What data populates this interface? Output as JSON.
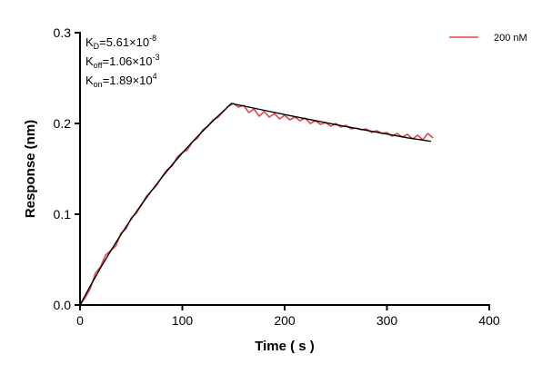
{
  "chart_data": {
    "type": "line",
    "title": "",
    "xlabel": "Time ( s )",
    "ylabel": "Response (nm)",
    "xlim": [
      0,
      400
    ],
    "ylim": [
      0,
      0.3
    ],
    "xticks": [
      "0",
      "100",
      "200",
      "300",
      "400"
    ],
    "yticks": [
      "0.0",
      "0.1",
      "0.2",
      "0.3"
    ],
    "grid": false,
    "legend_position": "top-right",
    "annotations": {
      "kd": {
        "label": "K",
        "sub": "D",
        "value": "=5.61×10",
        "exp": "-8"
      },
      "koff": {
        "label": "K",
        "sub": "off",
        "value": "=1.06×10",
        "exp": "-3"
      },
      "kon": {
        "label": "K",
        "sub": "on",
        "value": "=1.89×10",
        "exp": "4"
      }
    },
    "series": [
      {
        "name": "200 nM",
        "color": "#e0454a",
        "x": [
          0,
          5,
          10,
          15,
          20,
          25,
          30,
          35,
          40,
          45,
          50,
          55,
          60,
          65,
          70,
          75,
          80,
          85,
          90,
          95,
          100,
          105,
          110,
          115,
          120,
          125,
          130,
          135,
          140,
          145,
          150,
          155,
          160,
          165,
          170,
          175,
          180,
          185,
          190,
          195,
          200,
          205,
          210,
          215,
          220,
          225,
          230,
          235,
          240,
          245,
          250,
          255,
          260,
          265,
          270,
          275,
          280,
          285,
          290,
          295,
          300,
          305,
          310,
          315,
          320,
          325,
          330,
          335,
          340,
          345
        ],
        "y": [
          0.0,
          0.008,
          0.018,
          0.035,
          0.042,
          0.055,
          0.06,
          0.065,
          0.079,
          0.084,
          0.096,
          0.101,
          0.11,
          0.12,
          0.126,
          0.132,
          0.141,
          0.149,
          0.153,
          0.163,
          0.168,
          0.171,
          0.18,
          0.184,
          0.193,
          0.197,
          0.204,
          0.207,
          0.213,
          0.219,
          0.222,
          0.218,
          0.22,
          0.212,
          0.216,
          0.208,
          0.213,
          0.207,
          0.211,
          0.205,
          0.209,
          0.204,
          0.207,
          0.203,
          0.206,
          0.2,
          0.203,
          0.199,
          0.201,
          0.197,
          0.2,
          0.196,
          0.198,
          0.194,
          0.195,
          0.193,
          0.194,
          0.19,
          0.192,
          0.189,
          0.19,
          0.186,
          0.189,
          0.185,
          0.188,
          0.183,
          0.187,
          0.182,
          0.189,
          0.184
        ]
      },
      {
        "color": "#000000",
        "x": [
          0,
          10,
          20,
          30,
          40,
          50,
          60,
          70,
          80,
          90,
          100,
          110,
          120,
          130,
          140,
          148,
          160,
          180,
          200,
          220,
          240,
          260,
          280,
          300,
          320,
          343
        ],
        "y": [
          0,
          0.0209,
          0.0408,
          0.0597,
          0.0776,
          0.0946,
          0.1107,
          0.126,
          0.1406,
          0.1545,
          0.1675,
          0.1799,
          0.1916,
          0.2029,
          0.2135,
          0.222,
          0.2192,
          0.2145,
          0.2098,
          0.2053,
          0.2009,
          0.1966,
          0.1924,
          0.1883,
          0.1842,
          0.1803
        ]
      }
    ]
  }
}
